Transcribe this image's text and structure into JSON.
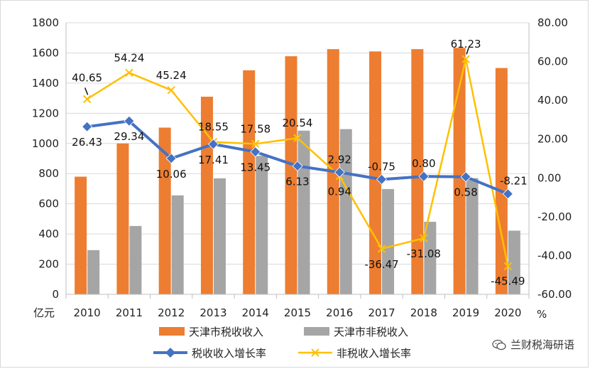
{
  "chart_data": {
    "type": "bar",
    "categories": [
      "2010",
      "2011",
      "2012",
      "2013",
      "2014",
      "2015",
      "2016",
      "2017",
      "2018",
      "2019",
      "2020"
    ],
    "left_axis": {
      "unit": "亿元",
      "ylim": [
        0,
        1800
      ],
      "ticks": [
        "0",
        "200",
        "400",
        "600",
        "800",
        "1000",
        "1200",
        "1400",
        "1600",
        "1800"
      ]
    },
    "right_axis": {
      "unit": "%",
      "ylim": [
        -60,
        80
      ],
      "ticks": [
        "-60.00",
        "-40.00",
        "-20.00",
        "0.00",
        "20.00",
        "40.00",
        "60.00",
        "80.00"
      ]
    },
    "grid": true,
    "legend_position": "bottom",
    "series": [
      {
        "name": "天津市税收收入",
        "type": "bar",
        "axis": "left",
        "color": "#ED7D31",
        "values": [
          780,
          1000,
          1105,
          1310,
          1485,
          1578,
          1625,
          1610,
          1625,
          1634,
          1500
        ]
      },
      {
        "name": "天津市非税收入",
        "type": "bar",
        "axis": "left",
        "color": "#A5A5A5",
        "values": [
          293,
          453,
          656,
          769,
          918,
          1085,
          1095,
          698,
          481,
          770,
          422
        ]
      },
      {
        "name": "税收收入增长率",
        "type": "line",
        "axis": "right",
        "color": "#4472C4",
        "marker": "diamond",
        "values": [
          26.43,
          29.34,
          10.06,
          17.41,
          13.45,
          6.13,
          2.92,
          -0.75,
          0.8,
          0.58,
          -8.21
        ],
        "labels": [
          "26.43",
          "29.34",
          "10.06",
          "17.41",
          "13.45",
          "6.13",
          "2.92",
          "-0.75",
          "0.80",
          "0.58",
          "-8.21"
        ]
      },
      {
        "name": "非税收入增长率",
        "type": "line",
        "axis": "right",
        "color": "#FFC000",
        "marker": "x",
        "values": [
          40.65,
          54.24,
          45.24,
          18.55,
          17.58,
          20.54,
          0.94,
          -36.47,
          -31.08,
          61.23,
          -45.49
        ],
        "labels": [
          "40.65",
          "54.24",
          "45.24",
          "18.55",
          "17.58",
          "20.54",
          "0.94",
          "-36.47",
          "-31.08",
          "61.23",
          "-45.49"
        ]
      }
    ]
  },
  "watermark": {
    "text": "兰财税海研语",
    "icon": "wechat-icon"
  }
}
